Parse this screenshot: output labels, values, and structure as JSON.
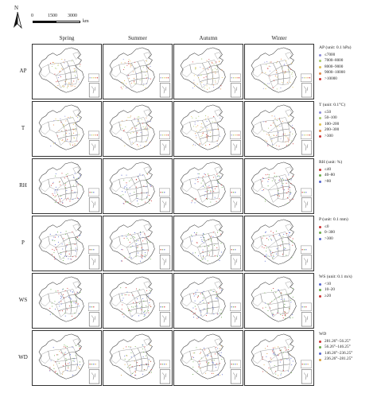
{
  "scale": {
    "north": "N",
    "ticks": [
      "0",
      "1500",
      "3000"
    ],
    "unit": "km"
  },
  "seasons": [
    "Spring",
    "Summer",
    "Autumn",
    "Winter"
  ],
  "rows": [
    {
      "label": "AP",
      "legend_title": "AP (unit: 0.1 hPa)",
      "legend_items": [
        "≤7000",
        "7000–8000",
        "8000–9000",
        "9000–10000",
        ">10000"
      ],
      "legend_colors": [
        "#8b8bd6",
        "#a8c86a",
        "#e0c050",
        "#e08848",
        "#cc3333"
      ]
    },
    {
      "label": "T",
      "legend_title": "T (unit: 0.1°C)",
      "legend_items": [
        "≤50",
        "50–100",
        "100–200",
        "200–300",
        ">300"
      ],
      "legend_colors": [
        "#8b8bd6",
        "#a8c86a",
        "#e0c050",
        "#e08848",
        "#cc3333"
      ]
    },
    {
      "label": "RH",
      "legend_title": "RH (unit: %)",
      "legend_items": [
        "≤40",
        "40–80",
        ">80"
      ],
      "legend_colors": [
        "#cc3333",
        "#6aaa4a",
        "#5566cc"
      ]
    },
    {
      "label": "P",
      "legend_title": "P (unit: 0.1 mm)",
      "legend_items": [
        "≤0",
        "0–300",
        ">300"
      ],
      "legend_colors": [
        "#cc3333",
        "#6aaa4a",
        "#5566cc"
      ]
    },
    {
      "label": "WS",
      "legend_title": "WS (unit: 0.1 m/s)",
      "legend_items": [
        "<10",
        "10–20",
        "≥20"
      ],
      "legend_colors": [
        "#5566cc",
        "#6aaa4a",
        "#cc3333"
      ]
    },
    {
      "label": "WD",
      "legend_title": "WD",
      "legend_items": [
        "281.26°–56.25°",
        "56.26°–146.25°",
        "146.26°–236.25°",
        "236.26°–281.25°"
      ],
      "legend_colors": [
        "#cc3333",
        "#6aaa4a",
        "#5566cc",
        "#d8a040"
      ]
    }
  ]
}
